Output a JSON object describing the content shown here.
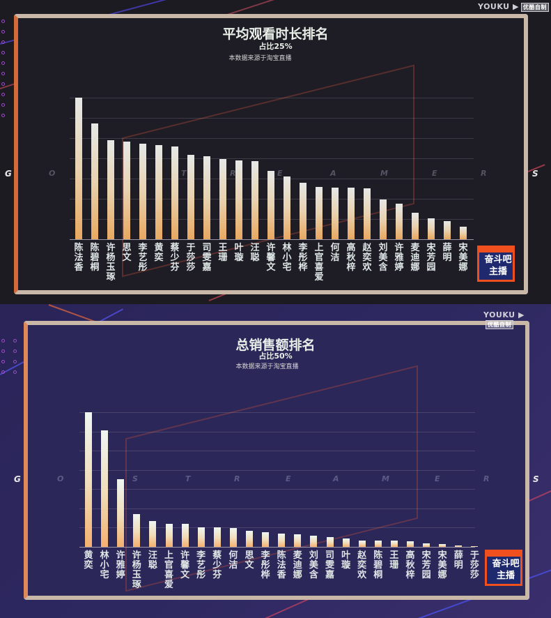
{
  "watermark": {
    "brand": "YOUKU",
    "tag": "优酷自制"
  },
  "logo": {
    "line1": "奋斗吧",
    "line2": "主播",
    "badge": "GO"
  },
  "gamers_text": [
    "G",
    "O",
    "S",
    "T",
    "R",
    "E",
    "A",
    "M",
    "E",
    "R",
    "S"
  ],
  "charts": [
    {
      "title": "平均观看时长排名",
      "share": "占比25%",
      "source": "本数据来源于淘宝直播"
    },
    {
      "title": "总销售额排名",
      "share": "占比50%",
      "source": "本数据来源于淘宝直播"
    }
  ],
  "chart_data": [
    {
      "type": "bar",
      "title": "平均观看时长排名",
      "subtitle": "占比25% · 本数据来源于淘宝直播",
      "xlabel": "",
      "ylabel": "",
      "grid": true,
      "categories": [
        "陈法香",
        "陈碧桐",
        "许杨玉琢",
        "思文",
        "李艺彤",
        "黄奕",
        "蔡少芬",
        "于莎莎",
        "司雯嘉",
        "王珊",
        "叶璇",
        "汪聪",
        "许馨文",
        "林小宅",
        "李彤桦",
        "上官喜爱",
        "何洁",
        "高秋梓",
        "赵奕欢",
        "刘美含",
        "许雅婷",
        "麦迪娜",
        "宋芳园",
        "薛明",
        "宋美娜"
      ],
      "values": [
        203,
        166,
        142,
        140,
        137,
        135,
        133,
        121,
        119,
        115,
        113,
        112,
        98,
        90,
        81,
        75,
        74,
        74,
        73,
        57,
        51,
        38,
        30,
        26,
        18
      ],
      "value_unit": "relative bar height (px)"
    },
    {
      "type": "bar",
      "title": "总销售额排名",
      "subtitle": "占比50% · 本数据来源于淘宝直播",
      "xlabel": "",
      "ylabel": "",
      "grid": true,
      "categories": [
        "黄奕",
        "林小宅",
        "许雅婷",
        "许杨玉琢",
        "汪聪",
        "上官喜爱",
        "许馨文",
        "李艺彤",
        "蔡少芬",
        "何洁",
        "思文",
        "李彤桦",
        "陈法香",
        "麦迪娜",
        "刘美含",
        "司雯嘉",
        "叶璇",
        "赵奕欢",
        "陈碧桐",
        "王珊",
        "高秋梓",
        "宋芳园",
        "宋美娜",
        "薛明",
        "于莎莎"
      ],
      "values": [
        193,
        167,
        97,
        47,
        37,
        33,
        33,
        28,
        28,
        27,
        23,
        21,
        19,
        18,
        16,
        14,
        12,
        9,
        9,
        9,
        8,
        5,
        4,
        2,
        1
      ],
      "value_unit": "relative bar height (px)"
    }
  ]
}
